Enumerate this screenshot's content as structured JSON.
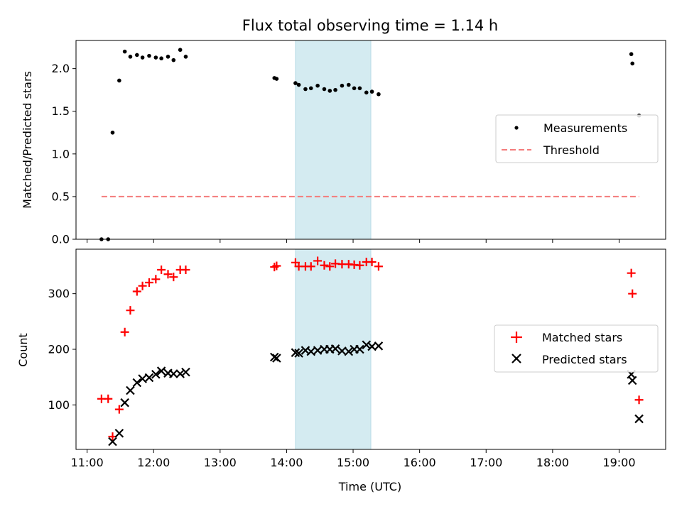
{
  "chart_data": [
    {
      "type": "scatter",
      "title": "Flux total observing time = 1.14 h",
      "xlabel": "",
      "ylabel": "Matched/Predicted stars",
      "xlim": [
        "10:50",
        "19:42"
      ],
      "ylim": [
        0,
        2.33
      ],
      "yticks": [
        0,
        0.5,
        1.0,
        1.5,
        2.0
      ],
      "ytick_labels": [
        "0.0",
        "0.5",
        "1.0",
        "1.5",
        "2.0"
      ],
      "grid": false,
      "legend_position": "center-right",
      "highlight_span": [
        "14:08",
        "15:16"
      ],
      "highlight_color": "#d4ebf1",
      "series": [
        {
          "name": "Measurements",
          "kind": "points",
          "color": "#000000",
          "points": [
            [
              "11:13",
              0.0
            ],
            [
              "11:19",
              0.0
            ],
            [
              "11:23",
              1.25
            ],
            [
              "11:29",
              1.86
            ],
            [
              "11:34",
              2.2
            ],
            [
              "11:39",
              2.14
            ],
            [
              "11:45",
              2.16
            ],
            [
              "11:50",
              2.13
            ],
            [
              "11:56",
              2.15
            ],
            [
              "12:02",
              2.13
            ],
            [
              "12:07",
              2.12
            ],
            [
              "12:13",
              2.14
            ],
            [
              "12:18",
              2.1
            ],
            [
              "12:24",
              2.22
            ],
            [
              "12:29",
              2.14
            ],
            [
              "13:49",
              1.89
            ],
            [
              "13:51",
              1.88
            ],
            [
              "14:08",
              1.83
            ],
            [
              "14:11",
              1.81
            ],
            [
              "14:17",
              1.76
            ],
            [
              "14:22",
              1.77
            ],
            [
              "14:28",
              1.8
            ],
            [
              "14:34",
              1.76
            ],
            [
              "14:39",
              1.74
            ],
            [
              "14:44",
              1.75
            ],
            [
              "14:50",
              1.8
            ],
            [
              "14:56",
              1.81
            ],
            [
              "15:01",
              1.77
            ],
            [
              "15:06",
              1.77
            ],
            [
              "15:12",
              1.72
            ],
            [
              "15:17",
              1.73
            ],
            [
              "15:23",
              1.7
            ],
            [
              "19:11",
              2.17
            ],
            [
              "19:12",
              2.06
            ],
            [
              "19:18",
              1.45
            ]
          ]
        },
        {
          "name": "Threshold",
          "kind": "dashed-line",
          "color": "#f47c7c",
          "points": [
            [
              "11:13",
              0.5
            ],
            [
              "19:18",
              0.5
            ]
          ]
        }
      ]
    },
    {
      "type": "scatter",
      "title": "",
      "xlabel": "Time (UTC)",
      "ylabel": "Count",
      "xlim": [
        "10:50",
        "19:42"
      ],
      "ylim": [
        20,
        380
      ],
      "xtick_labels": [
        "11:00",
        "12:00",
        "13:00",
        "14:00",
        "15:00",
        "16:00",
        "17:00",
        "18:00",
        "19:00"
      ],
      "yticks": [
        100,
        200,
        300
      ],
      "ytick_labels": [
        "100",
        "200",
        "300"
      ],
      "grid": false,
      "legend_position": "center-right",
      "highlight_span": [
        "14:08",
        "15:16"
      ],
      "highlight_color": "#d4ebf1",
      "series": [
        {
          "name": "Matched stars",
          "marker": "plus",
          "color": "#ff0000",
          "points": [
            [
              "11:13",
              111
            ],
            [
              "11:19",
              111
            ],
            [
              "11:23",
              43
            ],
            [
              "11:29",
              92
            ],
            [
              "11:34",
              231
            ],
            [
              "11:39",
              270
            ],
            [
              "11:45",
              304
            ],
            [
              "11:50",
              314
            ],
            [
              "11:56",
              320
            ],
            [
              "12:02",
              326
            ],
            [
              "12:07",
              343
            ],
            [
              "12:13",
              335
            ],
            [
              "12:18",
              330
            ],
            [
              "12:24",
              343
            ],
            [
              "12:29",
              343
            ],
            [
              "13:49",
              348
            ],
            [
              "13:51",
              350
            ],
            [
              "14:08",
              356
            ],
            [
              "14:11",
              349
            ],
            [
              "14:17",
              349
            ],
            [
              "14:22",
              349
            ],
            [
              "14:28",
              359
            ],
            [
              "14:34",
              351
            ],
            [
              "14:39",
              349
            ],
            [
              "14:44",
              354
            ],
            [
              "14:50",
              353
            ],
            [
              "14:56",
              353
            ],
            [
              "15:01",
              352
            ],
            [
              "15:06",
              351
            ],
            [
              "15:12",
              357
            ],
            [
              "15:17",
              357
            ],
            [
              "15:23",
              349
            ],
            [
              "19:11",
              337
            ],
            [
              "19:12",
              300
            ],
            [
              "19:18",
              109
            ]
          ]
        },
        {
          "name": "Predicted stars",
          "marker": "x",
          "color": "#000000",
          "points": [
            [
              "11:23",
              34
            ],
            [
              "11:29",
              49
            ],
            [
              "11:34",
              104
            ],
            [
              "11:39",
              126
            ],
            [
              "11:45",
              140
            ],
            [
              "11:50",
              147
            ],
            [
              "11:56",
              149
            ],
            [
              "12:02",
              155
            ],
            [
              "12:07",
              161
            ],
            [
              "12:13",
              157
            ],
            [
              "12:18",
              156
            ],
            [
              "12:24",
              156
            ],
            [
              "12:29",
              159
            ],
            [
              "13:49",
              186
            ],
            [
              "13:51",
              184
            ],
            [
              "14:08",
              194
            ],
            [
              "14:11",
              193
            ],
            [
              "14:17",
              198
            ],
            [
              "14:22",
              196
            ],
            [
              "14:28",
              198
            ],
            [
              "14:34",
              200
            ],
            [
              "14:39",
              200
            ],
            [
              "14:44",
              201
            ],
            [
              "14:50",
              197
            ],
            [
              "14:56",
              196
            ],
            [
              "15:01",
              200
            ],
            [
              "15:06",
              200
            ],
            [
              "15:12",
              208
            ],
            [
              "15:17",
              205
            ],
            [
              "15:23",
              206
            ],
            [
              "19:11",
              155
            ],
            [
              "19:12",
              144
            ],
            [
              "19:18",
              75
            ]
          ]
        }
      ]
    }
  ]
}
